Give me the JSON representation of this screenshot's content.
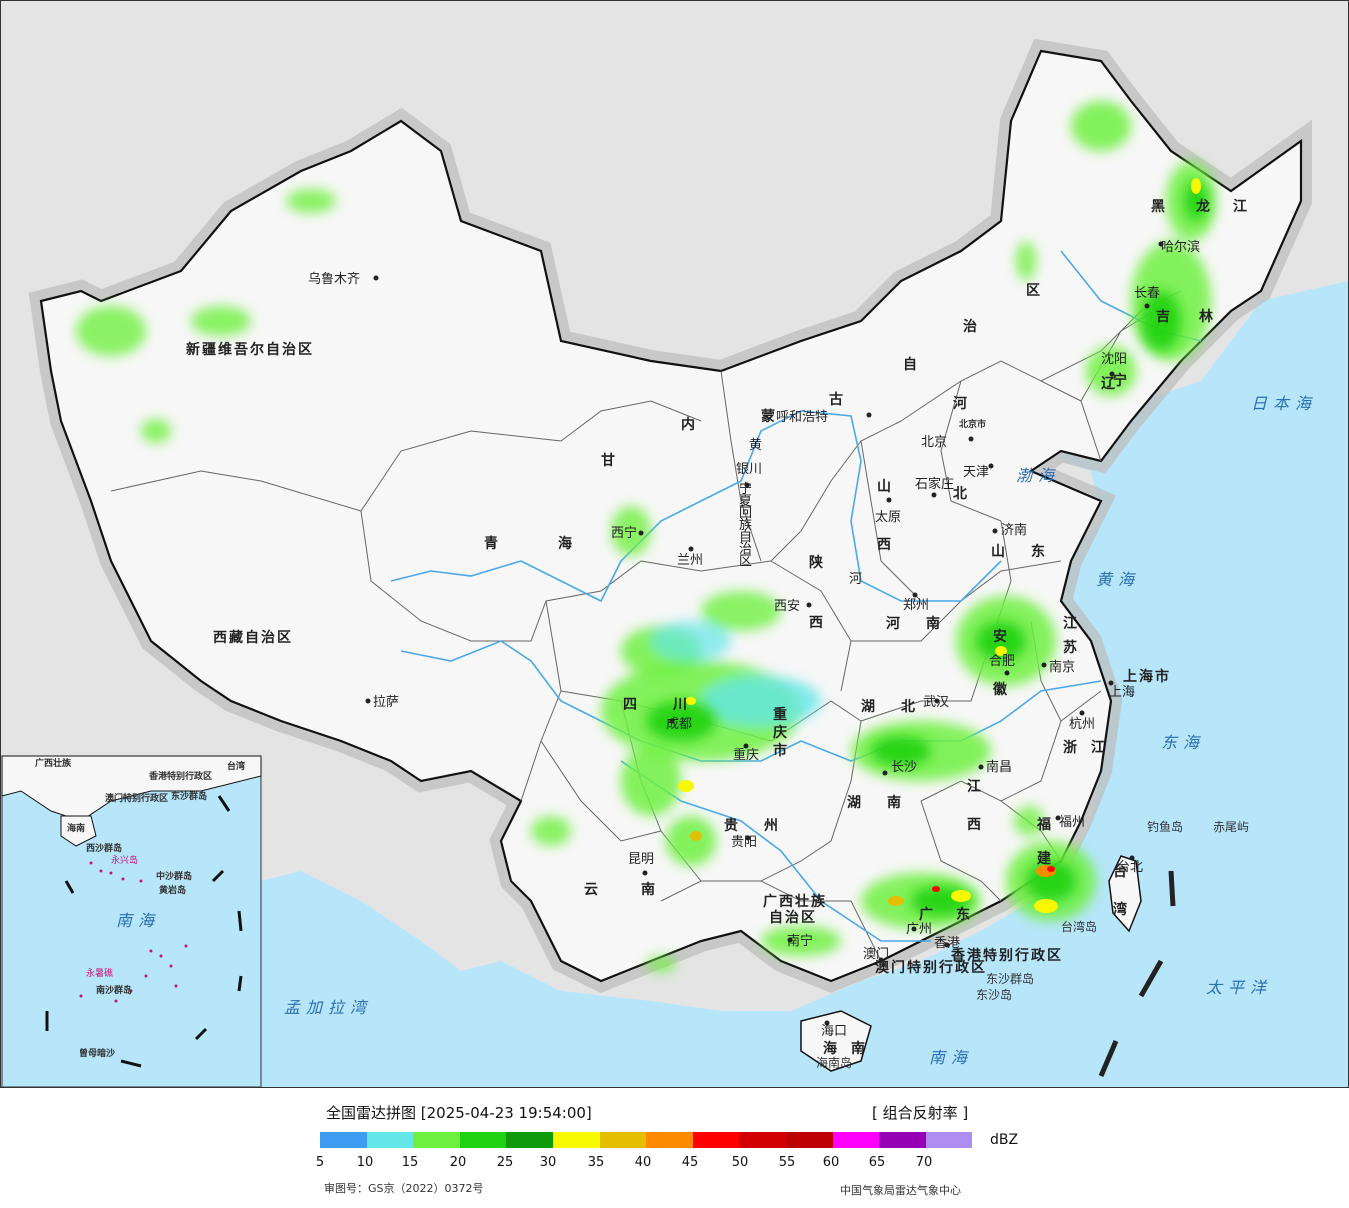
{
  "map": {
    "colors": {
      "sea": "#b7e6fb",
      "land_outside": "#e4e4e4",
      "china_land": "#f7f7f7",
      "border": "#111111",
      "province_border": "#555555",
      "river": "#4aa8e8"
    },
    "provinces": [
      {
        "id": "xinjiang",
        "label": "新疆维吾尔自治区"
      },
      {
        "id": "xizang",
        "label": "西藏自治区"
      },
      {
        "id": "qinghai",
        "label": "青海"
      },
      {
        "id": "gansu",
        "label": "甘"
      },
      {
        "id": "sichuan",
        "label": "四川"
      },
      {
        "id": "yunnan",
        "label": "云南"
      },
      {
        "id": "guizhou",
        "label": "贵州"
      },
      {
        "id": "guangxi",
        "label": "广西壮族自治区"
      },
      {
        "id": "guangdong",
        "label": "广东"
      },
      {
        "id": "hainan",
        "label": "海南"
      },
      {
        "id": "hunan",
        "label": "湖南"
      },
      {
        "id": "hubei",
        "label": "湖北"
      },
      {
        "id": "jiangxi",
        "label": "江西"
      },
      {
        "id": "fujian",
        "label": "福建"
      },
      {
        "id": "zhejiang",
        "label": "浙江"
      },
      {
        "id": "jiangsu",
        "label": "江苏"
      },
      {
        "id": "anhui",
        "label": "安徽"
      },
      {
        "id": "henan",
        "label": "河南"
      },
      {
        "id": "shandong",
        "label": "山东"
      },
      {
        "id": "shanxi",
        "label": "山西"
      },
      {
        "id": "shaanxi",
        "label": "陕西"
      },
      {
        "id": "neimenggu",
        "label": "内蒙古自治区"
      },
      {
        "id": "heilongjiang",
        "label": "黑龙江"
      },
      {
        "id": "jilin",
        "label": "吉林"
      },
      {
        "id": "liaoning",
        "label": "辽宁"
      },
      {
        "id": "hebei",
        "label": "河北"
      },
      {
        "id": "ningxia",
        "label": "宁夏回族自治区"
      },
      {
        "id": "chongqing",
        "label": "重庆市"
      },
      {
        "id": "shanghai",
        "label": "上海市"
      },
      {
        "id": "taiwan",
        "label": "台湾"
      },
      {
        "id": "hongkong",
        "label": "香港特别行政区"
      },
      {
        "id": "macau",
        "label": "澳门特别行政区"
      }
    ],
    "cities": [
      "乌鲁木齐",
      "拉萨",
      "西宁",
      "兰州",
      "银川",
      "呼和浩特",
      "北京",
      "北京市",
      "天津",
      "石家庄",
      "太原",
      "济南",
      "郑州",
      "西安",
      "南京",
      "合肥",
      "上海",
      "杭州",
      "武汉",
      "长沙",
      "南昌",
      "福州",
      "台北",
      "重庆",
      "成都",
      "贵阳",
      "昆明",
      "南宁",
      "广州",
      "香港",
      "澳门",
      "海口",
      "哈尔滨",
      "长春",
      "沈阳"
    ],
    "seas": [
      "日本海",
      "渤海",
      "黄海",
      "东海",
      "南海",
      "太平洋",
      "孟加拉湾"
    ],
    "islands": [
      "钓鱼岛",
      "赤尾屿",
      "台湾岛",
      "东沙群岛",
      "东沙岛",
      "海南岛"
    ],
    "rivers": [
      "黄",
      "河"
    ],
    "inset": {
      "labels": [
        "广西壮族",
        "台湾",
        "香港特别行政区",
        "澳门特别行政区",
        "东沙群岛",
        "海南",
        "西沙群岛",
        "永兴岛",
        "中沙群岛",
        "黄岩岛",
        "南海",
        "永暑礁",
        "南沙群岛",
        "曾母暗沙"
      ]
    }
  },
  "legend": {
    "title": "全国雷达拼图 [2025-04-23 19:54:00]",
    "product": "[ 组合反射率 ]",
    "unit": "dBZ",
    "colors": [
      "#3d9cf0",
      "#64e6e8",
      "#6ef040",
      "#1ed212",
      "#0e9a0a",
      "#f8f800",
      "#e6be00",
      "#ff8c00",
      "#ff0000",
      "#d20000",
      "#bc0000",
      "#ff00ff",
      "#9600b4",
      "#ae8ef0"
    ],
    "ticks": [
      "5",
      "10",
      "15",
      "20",
      "25",
      "30",
      "35",
      "40",
      "45",
      "50",
      "55",
      "60",
      "65",
      "70"
    ],
    "review_number": "审图号：GS京（2022）0372号",
    "publisher": "中国气象局雷达气象中心"
  }
}
